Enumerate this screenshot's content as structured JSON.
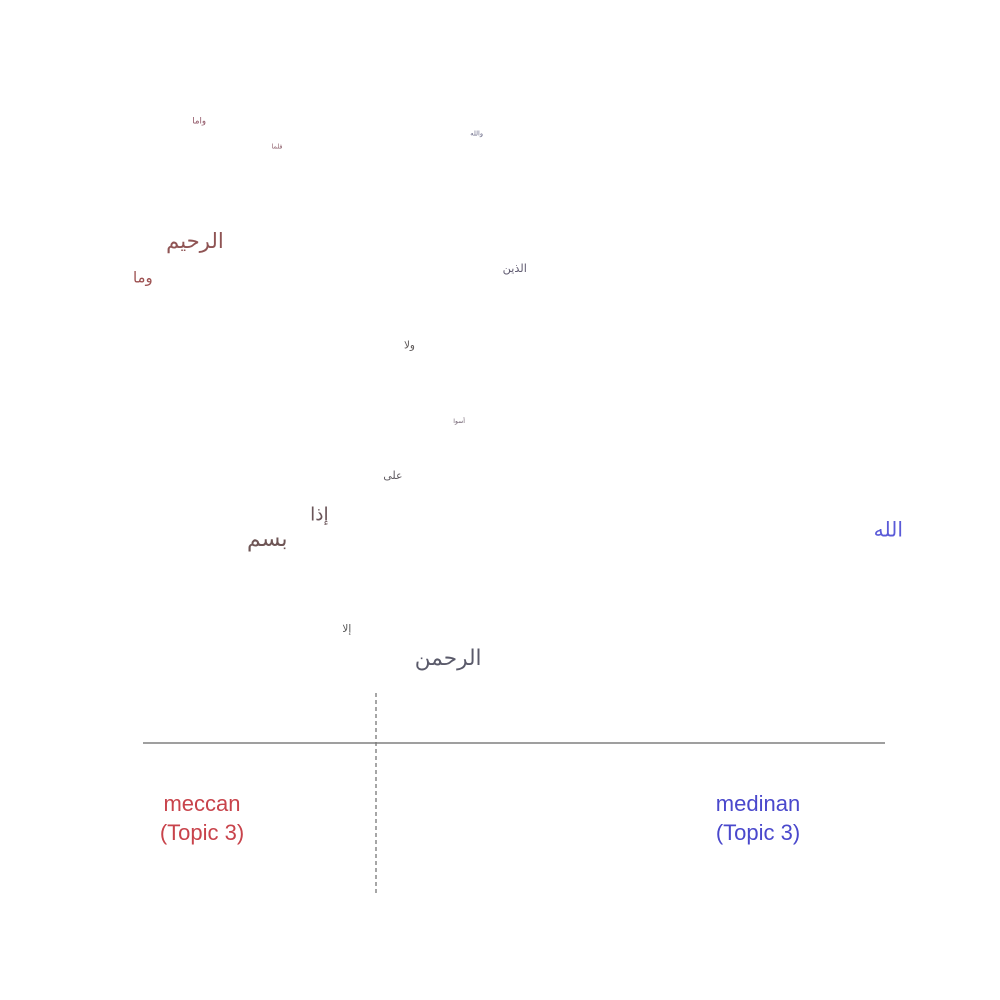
{
  "chart_data": {
    "type": "scatter",
    "title": "",
    "xlabel": "",
    "ylabel": "",
    "xlim": [
      0,
      1
    ],
    "ylim": [
      0,
      1
    ],
    "grid": false,
    "legend": "none",
    "split_value": 0.313,
    "categories": [
      {
        "label": "meccan",
        "sub": "(Topic 3)",
        "color": "#c8434b"
      },
      {
        "label": "medinan",
        "sub": "(Topic 3)",
        "color": "#4a48cc"
      }
    ],
    "words": [
      {
        "text": "واما",
        "x": 0.077,
        "y": 0.985,
        "size": 0.2,
        "color": "#8c4f60"
      },
      {
        "text": "والله",
        "x": 0.438,
        "y": 0.963,
        "size": 0.09,
        "color": "#6b6b88"
      },
      {
        "text": "فلما",
        "x": 0.18,
        "y": 0.94,
        "size": 0.08,
        "color": "#8a5a66"
      },
      {
        "text": "الرحيم",
        "x": 0.043,
        "y": 0.776,
        "size": 0.9,
        "color": "#8f5454"
      },
      {
        "text": "وما",
        "x": 0.0,
        "y": 0.712,
        "size": 0.55,
        "color": "#9c5050"
      },
      {
        "text": "الذين",
        "x": 0.48,
        "y": 0.728,
        "size": 0.35,
        "color": "#5f5a70"
      },
      {
        "text": "ولا",
        "x": 0.352,
        "y": 0.594,
        "size": 0.3,
        "color": "#5a5555"
      },
      {
        "text": "أسوا",
        "x": 0.416,
        "y": 0.462,
        "size": 0.06,
        "color": "#6a5a6a"
      },
      {
        "text": "على",
        "x": 0.325,
        "y": 0.367,
        "size": 0.33,
        "color": "#5f5a60"
      },
      {
        "text": "إذا",
        "x": 0.23,
        "y": 0.3,
        "size": 0.75,
        "color": "#6a5458"
      },
      {
        "text": "بسم",
        "x": 0.148,
        "y": 0.257,
        "size": 0.95,
        "color": "#6e5555"
      },
      {
        "text": "الله",
        "x": 1.0,
        "y": 0.273,
        "size": 0.85,
        "color": "#5a5ad8"
      },
      {
        "text": "إلا",
        "x": 0.272,
        "y": 0.1,
        "size": 0.3,
        "color": "#545454"
      },
      {
        "text": "الرحمن",
        "x": 0.366,
        "y": 0.05,
        "size": 0.92,
        "color": "#5a5a6a"
      }
    ]
  }
}
